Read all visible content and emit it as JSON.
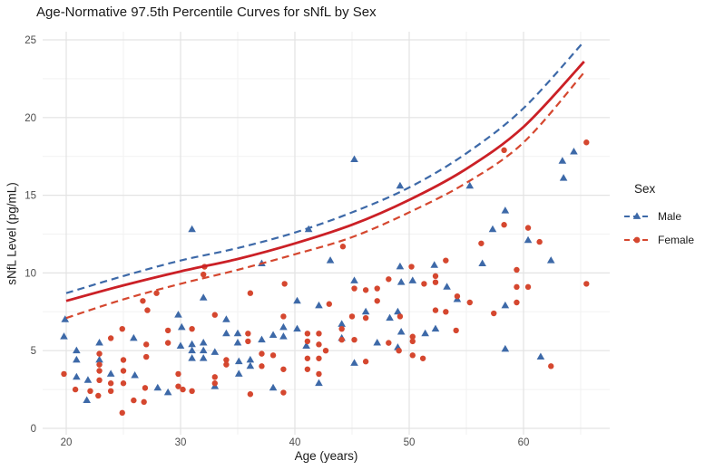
{
  "title": "Age-Normative 97.5th Percentile Curves for sNfL by Sex",
  "axes": {
    "x_label": "Age (years)",
    "y_label": "sNfL Level (pg/mL)",
    "x_tick_labels": [
      "20",
      "30",
      "40",
      "50",
      "60"
    ],
    "y_tick_labels": [
      "0",
      "5",
      "10",
      "15",
      "20",
      "25"
    ]
  },
  "legend": {
    "title": "Sex",
    "entries": [
      {
        "label": "Male",
        "marker": "triangle",
        "line": "dashed",
        "color": "#3D69A8"
      },
      {
        "label": "Female",
        "marker": "circle",
        "line": "dashed",
        "color": "#D5472F"
      }
    ]
  },
  "colors": {
    "male": "#3D69A8",
    "female": "#D5472F",
    "combined_curve": "#CB2026",
    "grid_major": "#E3E3E3",
    "grid_minor": "#F2F2F2",
    "tick_text": "#4D4D4D",
    "text": "#1A1A1A",
    "background": "#FFFFFF"
  },
  "chart_data": {
    "type": "scatter",
    "title": "Age-Normative 97.5th Percentile Curves for sNfL by Sex",
    "xlabel": "Age (years)",
    "ylabel": "sNfL Level (pg/mL)",
    "xlim": [
      17.9,
      67.5
    ],
    "ylim": [
      -0.4,
      25.5
    ],
    "x_major_ticks": [
      20,
      30,
      40,
      50,
      60
    ],
    "x_minor_ticks": [
      25,
      35,
      45,
      55,
      65
    ],
    "y_major_ticks": [
      0,
      5,
      10,
      15,
      20,
      25
    ],
    "y_minor_ticks": [
      2.5,
      7.5,
      12.5,
      17.5,
      22.5
    ],
    "grid": true,
    "legend_position": "right-middle",
    "series": [
      {
        "name": "Male",
        "marker": "triangle",
        "color": "#3D69A8",
        "points": [
          [
            19.9,
            7.0
          ],
          [
            19.8,
            5.9
          ],
          [
            20.9,
            5.0
          ],
          [
            20.9,
            4.4
          ],
          [
            20.9,
            3.3
          ],
          [
            21.9,
            3.1
          ],
          [
            21.8,
            1.8
          ],
          [
            22.9,
            5.5
          ],
          [
            22.9,
            4.4
          ],
          [
            23.9,
            3.5
          ],
          [
            25.9,
            5.8
          ],
          [
            26,
            3.4
          ],
          [
            28,
            2.6
          ],
          [
            28.9,
            2.3
          ],
          [
            29.8,
            7.3
          ],
          [
            30.1,
            6.5
          ],
          [
            30,
            5.3
          ],
          [
            31,
            12.8
          ],
          [
            31,
            5.4
          ],
          [
            31,
            5.0
          ],
          [
            31,
            4.5
          ],
          [
            32,
            8.4
          ],
          [
            32,
            5.5
          ],
          [
            32,
            5.0
          ],
          [
            32,
            4.5
          ],
          [
            33,
            4.9
          ],
          [
            33,
            2.7
          ],
          [
            34,
            7.0
          ],
          [
            34,
            6.1
          ],
          [
            35,
            6.1
          ],
          [
            35,
            5.5
          ],
          [
            35.1,
            4.3
          ],
          [
            35.1,
            3.5
          ],
          [
            36.1,
            4.4
          ],
          [
            36.1,
            4.0
          ],
          [
            37.1,
            10.6
          ],
          [
            37.1,
            5.7
          ],
          [
            38.1,
            6.0
          ],
          [
            38.1,
            2.6
          ],
          [
            39,
            6.5
          ],
          [
            39,
            5.9
          ],
          [
            40.2,
            8.2
          ],
          [
            40.2,
            6.4
          ],
          [
            41.2,
            12.8
          ],
          [
            41,
            5.3
          ],
          [
            42.1,
            7.9
          ],
          [
            42.1,
            2.9
          ],
          [
            43.1,
            10.8
          ],
          [
            44.1,
            6.7
          ],
          [
            44.1,
            5.8
          ],
          [
            45.2,
            17.3
          ],
          [
            45.2,
            9.5
          ],
          [
            45.2,
            4.2
          ],
          [
            46.2,
            7.5
          ],
          [
            47.2,
            5.5
          ],
          [
            48.3,
            7.1
          ],
          [
            49.2,
            15.6
          ],
          [
            49.2,
            10.4
          ],
          [
            49.3,
            9.4
          ],
          [
            49,
            7.5
          ],
          [
            49.3,
            6.2
          ],
          [
            49,
            5.2
          ],
          [
            50.3,
            9.5
          ],
          [
            51.4,
            6.1
          ],
          [
            52.2,
            10.5
          ],
          [
            52.3,
            6.4
          ],
          [
            53.3,
            9.1
          ],
          [
            54.2,
            8.3
          ],
          [
            55.3,
            15.6
          ],
          [
            56.4,
            10.6
          ],
          [
            57.3,
            12.8
          ],
          [
            58.4,
            14.0
          ],
          [
            58.4,
            7.9
          ],
          [
            58.4,
            5.1
          ],
          [
            60.4,
            12.1
          ],
          [
            61.5,
            4.6
          ],
          [
            62.4,
            10.8
          ],
          [
            63.4,
            17.2
          ],
          [
            63.5,
            16.1
          ],
          [
            64.4,
            17.8
          ]
        ]
      },
      {
        "name": "Female",
        "marker": "circle",
        "color": "#D5472F",
        "points": [
          [
            19.8,
            3.5
          ],
          [
            20.8,
            2.5
          ],
          [
            22.1,
            2.4
          ],
          [
            22.9,
            4.8
          ],
          [
            22.9,
            4.1
          ],
          [
            22.9,
            3.7
          ],
          [
            22.9,
            3.1
          ],
          [
            22.8,
            2.1
          ],
          [
            23.9,
            5.8
          ],
          [
            23.9,
            2.9
          ],
          [
            23.9,
            2.4
          ],
          [
            24.9,
            6.4
          ],
          [
            25,
            4.4
          ],
          [
            25,
            3.7
          ],
          [
            25,
            2.9
          ],
          [
            24.9,
            1.0
          ],
          [
            25.9,
            1.8
          ],
          [
            26.7,
            8.2
          ],
          [
            27.1,
            7.6
          ],
          [
            27,
            5.4
          ],
          [
            27,
            4.6
          ],
          [
            26.9,
            2.6
          ],
          [
            26.8,
            1.7
          ],
          [
            27.9,
            8.7
          ],
          [
            28.9,
            6.3
          ],
          [
            28.9,
            5.5
          ],
          [
            29.8,
            3.5
          ],
          [
            29.8,
            2.7
          ],
          [
            30.2,
            2.5
          ],
          [
            31,
            6.4
          ],
          [
            31,
            2.4
          ],
          [
            32.1,
            10.4
          ],
          [
            32,
            9.9
          ],
          [
            33,
            7.3
          ],
          [
            33,
            3.3
          ],
          [
            33,
            2.9
          ],
          [
            34,
            4.4
          ],
          [
            34,
            4.1
          ],
          [
            36.1,
            8.7
          ],
          [
            35.9,
            6.1
          ],
          [
            35.9,
            5.6
          ],
          [
            36.1,
            2.2
          ],
          [
            37.1,
            4.8
          ],
          [
            37.1,
            4.0
          ],
          [
            38.1,
            4.7
          ],
          [
            39.1,
            9.3
          ],
          [
            39,
            7.2
          ],
          [
            39,
            3.8
          ],
          [
            39,
            2.3
          ],
          [
            41.1,
            6.1
          ],
          [
            41.1,
            5.6
          ],
          [
            41.1,
            4.5
          ],
          [
            41.1,
            3.8
          ],
          [
            42.1,
            6.1
          ],
          [
            42.1,
            5.4
          ],
          [
            42.1,
            4.5
          ],
          [
            42.1,
            3.5
          ],
          [
            43,
            8.0
          ],
          [
            42.7,
            5.0
          ],
          [
            44.2,
            11.7
          ],
          [
            44.1,
            6.4
          ],
          [
            44.1,
            5.7
          ],
          [
            45.2,
            9.0
          ],
          [
            45,
            7.2
          ],
          [
            45.2,
            5.7
          ],
          [
            46.2,
            8.9
          ],
          [
            46.2,
            7.1
          ],
          [
            46.2,
            4.3
          ],
          [
            47.2,
            9.0
          ],
          [
            47.2,
            8.2
          ],
          [
            48.2,
            9.6
          ],
          [
            48.2,
            5.5
          ],
          [
            49.2,
            7.2
          ],
          [
            49.1,
            5.0
          ],
          [
            50.2,
            10.4
          ],
          [
            50.3,
            5.9
          ],
          [
            50.3,
            5.6
          ],
          [
            50.3,
            4.7
          ],
          [
            51.3,
            9.3
          ],
          [
            51.2,
            4.5
          ],
          [
            52.3,
            9.8
          ],
          [
            52.3,
            9.4
          ],
          [
            52.3,
            7.6
          ],
          [
            53.2,
            10.8
          ],
          [
            53.2,
            7.5
          ],
          [
            54.2,
            8.5
          ],
          [
            54.1,
            6.3
          ],
          [
            55.3,
            8.1
          ],
          [
            56.3,
            11.9
          ],
          [
            57.4,
            7.4
          ],
          [
            58.3,
            17.9
          ],
          [
            58.3,
            13.1
          ],
          [
            59.4,
            10.2
          ],
          [
            59.4,
            9.1
          ],
          [
            59.4,
            8.1
          ],
          [
            60.4,
            12.9
          ],
          [
            60.4,
            9.1
          ],
          [
            61.4,
            12.0
          ],
          [
            62.4,
            4.0
          ],
          [
            65.5,
            18.4
          ],
          [
            65.5,
            9.3
          ]
        ]
      }
    ],
    "curves": [
      {
        "name": "Male 97.5th percentile",
        "style": "dashed",
        "color": "#3D69A8",
        "x": [
          20,
          25,
          30,
          35,
          40,
          45,
          50,
          55,
          60,
          65.3
        ],
        "y": [
          8.7,
          9.8,
          10.8,
          11.6,
          12.6,
          13.9,
          15.5,
          17.7,
          20.6,
          24.9
        ]
      },
      {
        "name": "Combined 97.5th percentile",
        "style": "solid",
        "color": "#CB2026",
        "x": [
          20,
          25,
          30,
          35,
          40,
          45,
          50,
          55,
          60,
          65.3
        ],
        "y": [
          8.2,
          9.2,
          10.1,
          10.9,
          11.9,
          13.1,
          14.7,
          16.7,
          19.4,
          23.6
        ]
      },
      {
        "name": "Female 97.5th percentile",
        "style": "dashed",
        "color": "#D5472F",
        "x": [
          20,
          25,
          30,
          35,
          40,
          45,
          50,
          55,
          60,
          65.3
        ],
        "y": [
          7.1,
          8.3,
          9.3,
          10.2,
          11.2,
          12.3,
          13.9,
          15.8,
          18.4,
          22.9
        ]
      }
    ]
  }
}
